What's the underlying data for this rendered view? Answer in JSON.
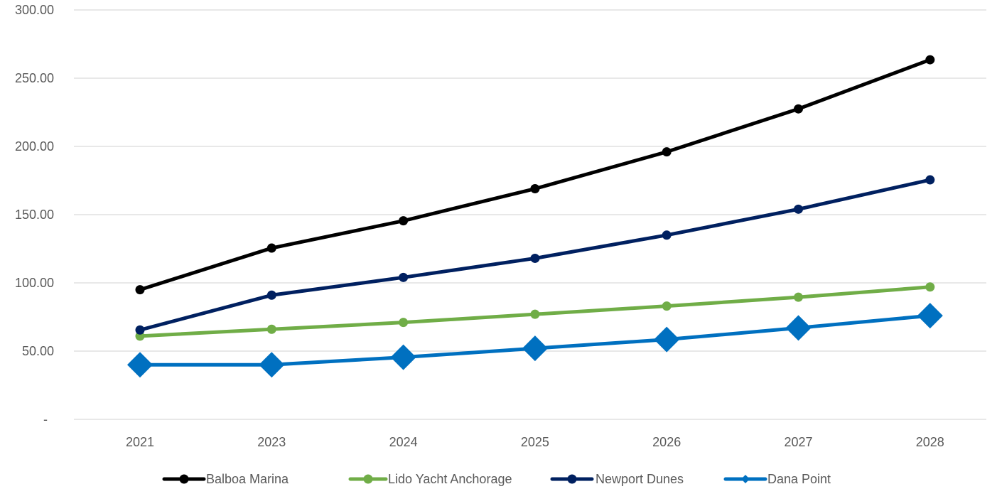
{
  "chart_data": {
    "type": "line",
    "title": "",
    "xlabel": "",
    "ylabel": "",
    "categories": [
      "2021",
      "2023",
      "2024",
      "2025",
      "2026",
      "2027",
      "2028"
    ],
    "ylim": [
      0,
      300
    ],
    "y_ticks": [
      0,
      50,
      100,
      150,
      200,
      250,
      300
    ],
    "y_tick_labels": [
      "-",
      "50.00",
      "100.00",
      "150.00",
      "200.00",
      "250.00",
      "300.00"
    ],
    "grid": true,
    "legend_position": "bottom",
    "series": [
      {
        "name": "Balboa Marina",
        "color": "#000000",
        "marker": "circle",
        "values": [
          95,
          125.5,
          145.5,
          169,
          196,
          227.5,
          263.5
        ]
      },
      {
        "name": "Lido Yacht Anchorage",
        "color": "#70ad47",
        "marker": "circle",
        "values": [
          61,
          66,
          71,
          77,
          83,
          89.5,
          97
        ]
      },
      {
        "name": "Newport Dunes",
        "color": "#002060",
        "marker": "circle",
        "values": [
          65.5,
          91,
          104,
          118,
          135,
          154,
          175.5
        ]
      },
      {
        "name": "Dana Point",
        "color": "#0070c0",
        "marker": "diamond",
        "values": [
          40,
          40,
          45.5,
          52,
          58.5,
          67,
          76
        ]
      }
    ]
  }
}
